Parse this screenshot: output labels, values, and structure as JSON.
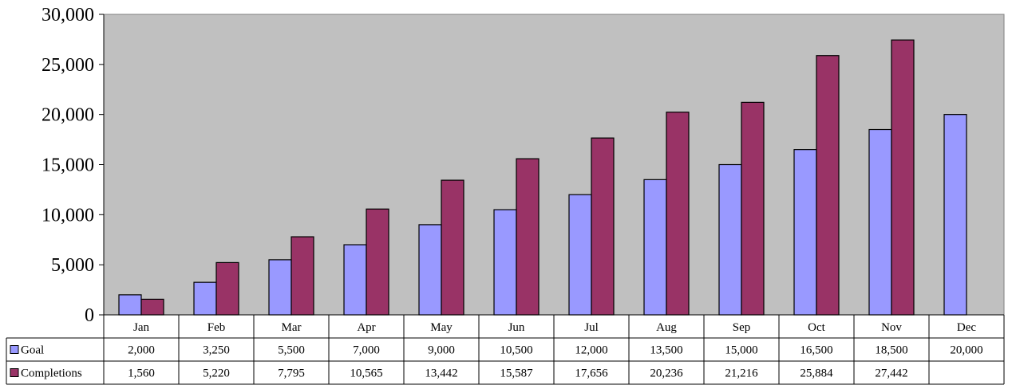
{
  "chart_data": {
    "type": "bar",
    "categories": [
      "Jan",
      "Feb",
      "Mar",
      "Apr",
      "May",
      "Jun",
      "Jul",
      "Aug",
      "Sep",
      "Oct",
      "Nov",
      "Dec"
    ],
    "series": [
      {
        "name": "Goal",
        "color": "#9999ff",
        "values": [
          2000,
          3250,
          5500,
          7000,
          9000,
          10500,
          12000,
          13500,
          15000,
          16500,
          18500,
          20000
        ],
        "labels": [
          "2,000",
          "3,250",
          "5,500",
          "7,000",
          "9,000",
          "10,500",
          "12,000",
          "13,500",
          "15,000",
          "16,500",
          "18,500",
          "20,000"
        ]
      },
      {
        "name": "Completions",
        "color": "#993366",
        "values": [
          1560,
          5220,
          7795,
          10565,
          13442,
          15587,
          17656,
          20236,
          21216,
          25884,
          27442,
          null
        ],
        "labels": [
          "1,560",
          "5,220",
          "7,795",
          "10,565",
          "13,442",
          "15,587",
          "17,656",
          "20,236",
          "21,216",
          "25,884",
          "27,442",
          ""
        ]
      }
    ],
    "ylim": [
      0,
      30000
    ],
    "yticks": [
      0,
      5000,
      10000,
      15000,
      20000,
      25000,
      30000
    ],
    "ytick_labels": [
      "0",
      "5,000",
      "10,000",
      "15,000",
      "20,000",
      "25,000",
      "30,000"
    ],
    "plot_background": "#c0c0c0",
    "grid": false,
    "legend": "data-table",
    "title": "",
    "xlabel": "",
    "ylabel": ""
  }
}
